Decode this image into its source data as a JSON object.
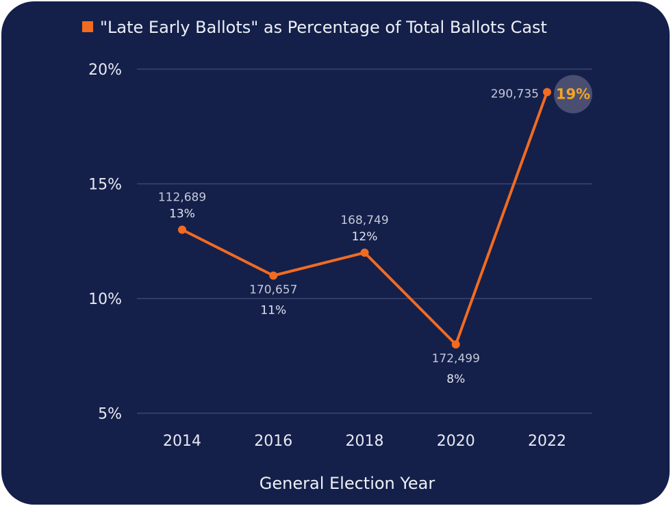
{
  "chart_data": {
    "type": "line",
    "title": "",
    "legend": {
      "label": "\"Late Early Ballots\" as Percentage of Total Ballots Cast",
      "position": "top"
    },
    "xlabel": "General Election Year",
    "ylabel": "",
    "categories": [
      "2014",
      "2016",
      "2018",
      "2020",
      "2022"
    ],
    "series": [
      {
        "name": "\"Late Early Ballots\" as Percentage of Total Ballots Cast",
        "values": [
          13,
          11,
          12,
          8,
          19
        ],
        "counts": [
          "112,689",
          "170,657",
          "168,749",
          "172,499",
          "290,735"
        ],
        "pct_labels": [
          "13%",
          "11%",
          "12%",
          "8%",
          "19%"
        ]
      }
    ],
    "ylim": [
      5,
      20
    ],
    "yticks": [
      5,
      10,
      15,
      20
    ],
    "ytick_labels": [
      "5%",
      "10%",
      "15%",
      "20%"
    ],
    "grid": true,
    "colors": {
      "background": "#14204a",
      "line": "#f26b21",
      "highlight": "#f5a623",
      "grid": "#3a4670"
    }
  }
}
